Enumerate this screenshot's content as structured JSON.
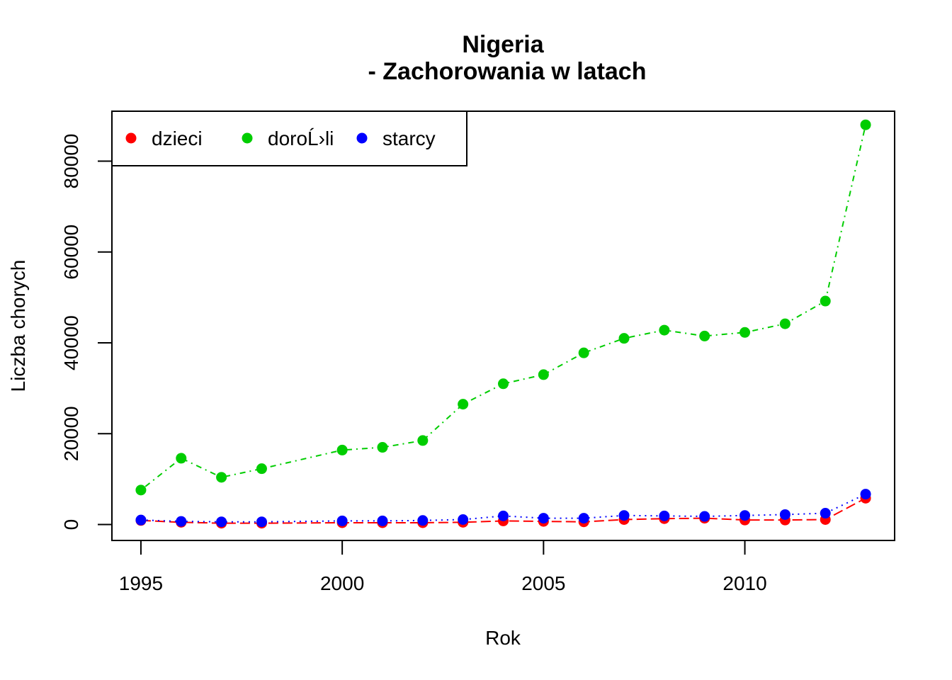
{
  "chart_data": {
    "type": "line",
    "title": "Nigeria",
    "subtitle": "- Zachorowania w latach",
    "xlabel": "Rok",
    "ylabel": "Liczba chorych",
    "x": [
      1995,
      1996,
      1997,
      1998,
      1999,
      2000,
      2001,
      2002,
      2003,
      2004,
      2005,
      2006,
      2007,
      2008,
      2009,
      2010,
      2011,
      2012,
      2013
    ],
    "xlim": [
      1994.28,
      2013.72
    ],
    "ylim": [
      -3500,
      91000
    ],
    "xticks": [
      1995,
      2000,
      2005,
      2010
    ],
    "yticks": [
      0,
      20000,
      40000,
      60000,
      80000
    ],
    "grid": false,
    "legend_position": "top-left",
    "series": [
      {
        "name": "dzieci",
        "color": "#FF0000",
        "line_style": "longdash",
        "values": [
          900,
          500,
          300,
          300,
          null,
          400,
          400,
          400,
          500,
          800,
          700,
          600,
          1100,
          1300,
          1400,
          1000,
          1000,
          1100,
          5800
        ]
      },
      {
        "name": "doroĹ›li",
        "color": "#00CD00",
        "line_style": "dotdash",
        "values": [
          7600,
          14600,
          10400,
          12300,
          null,
          16400,
          17000,
          18500,
          26500,
          31000,
          33000,
          37800,
          41000,
          42800,
          41500,
          42300,
          44200,
          49200,
          88000
        ]
      },
      {
        "name": "starcy",
        "color": "#0000FF",
        "line_style": "dotted",
        "values": [
          1000,
          700,
          600,
          600,
          null,
          800,
          800,
          900,
          1100,
          1900,
          1400,
          1400,
          2000,
          1900,
          1800,
          2000,
          2200,
          2500,
          6700
        ]
      }
    ]
  }
}
